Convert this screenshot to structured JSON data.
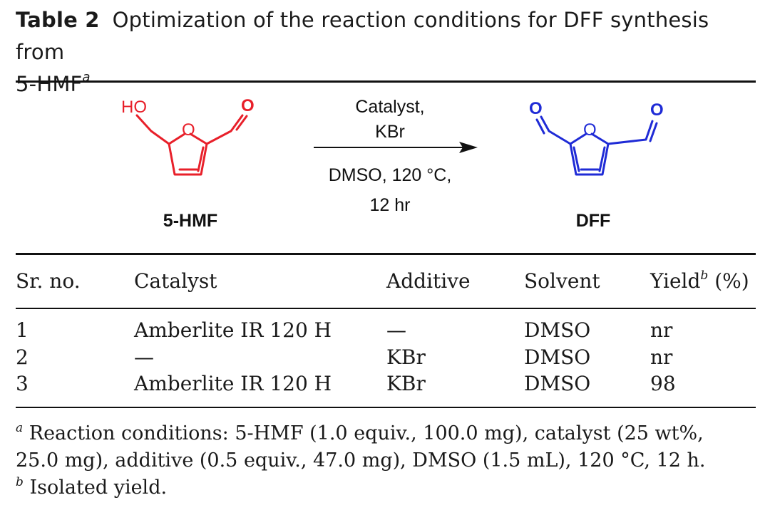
{
  "caption": {
    "table_number": "Table 2",
    "title_line1": "Optimization of the reaction conditions for DFF synthesis from",
    "title_line2": "5-HMF",
    "title_note": "a"
  },
  "scheme": {
    "reactant_name": "5-HMF",
    "product_name": "DFF",
    "reactant_labels": {
      "ho": "HO",
      "ring_o": "O",
      "carbonyl_o": "O"
    },
    "product_labels": {
      "ring_o": "O",
      "carbonyl_o_left": "O",
      "carbonyl_o_right": "O"
    },
    "reagents_above": [
      "Catalyst,",
      "KBr"
    ],
    "conditions_below": [
      "DMSO, 120 °C,",
      "12 hr"
    ],
    "colors": {
      "reactant": "#e8202a",
      "product": "#1f2bd6",
      "arrow": "#111111"
    }
  },
  "table": {
    "headers": {
      "sr_no": "Sr. no.",
      "catalyst": "Catalyst",
      "additive": "Additive",
      "solvent": "Solvent",
      "yield": "Yield",
      "yield_note": "b",
      "yield_unit": " (%)"
    },
    "rows": [
      {
        "sr": "1",
        "catalyst": "Amberlite IR 120 H",
        "additive": "—",
        "solvent": "DMSO",
        "yield": "nr"
      },
      {
        "sr": "2",
        "catalyst": "—",
        "additive": "KBr",
        "solvent": "DMSO",
        "yield": "nr"
      },
      {
        "sr": "3",
        "catalyst": "Amberlite IR 120 H",
        "additive": "KBr",
        "solvent": "DMSO",
        "yield": "98"
      }
    ]
  },
  "footnotes": {
    "a_mark": "a",
    "a_line1": "Reaction conditions: 5-HMF (1.0 equiv., 100.0 mg), catalyst (25 wt%,",
    "a_line2": "25.0 mg), additive (0.5 equiv., 47.0 mg), DMSO (1.5 mL), 120 °C, 12 h.",
    "b_mark": "b",
    "b_text": "Isolated yield."
  }
}
